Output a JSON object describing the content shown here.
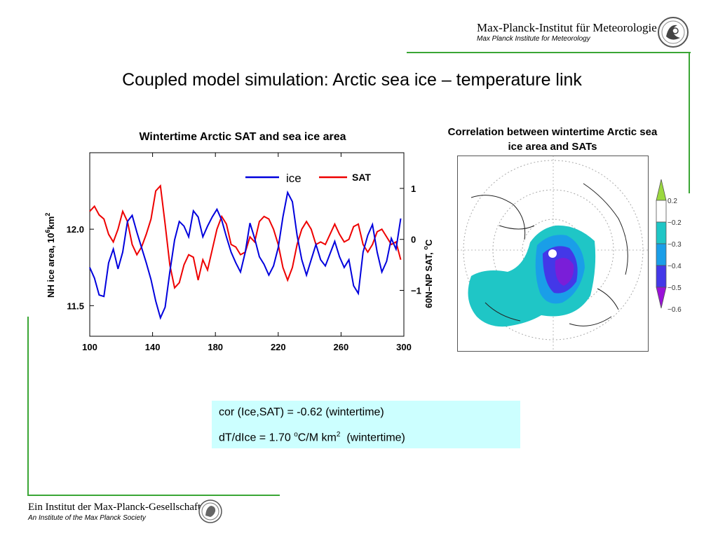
{
  "header": {
    "institute_de": "Max-Planck-Institut für Meteorologie",
    "institute_en": "Max Planck Institute for Meteorology",
    "logo_icon": "mpi-meteorology-logo-icon"
  },
  "slide": {
    "title": "Coupled model simulation: Arctic sea ice – temperature link"
  },
  "footer": {
    "society_de": "Ein Institut der Max-Planck-Gesellschaft",
    "society_en": "An Institute of the Max Planck Society",
    "logo_icon": "minerva-seal-icon"
  },
  "colors": {
    "accent_line": "#3aa635",
    "ice": "#0000dd",
    "sat": "#ee0000",
    "info_box": "#ccffff"
  },
  "info": {
    "line1": "cor (Ice,SAT) = -0.62 (wintertime)",
    "line2_pre": "dT/dIce = 1.70 ",
    "line2_sup1": "o",
    "line2_mid": "C/M km",
    "line2_sup2": "2",
    "line2_post": "  (wintertime)"
  },
  "chart_data": [
    {
      "type": "line",
      "title": "Wintertime Arctic SAT and sea ice area",
      "xlim": [
        100,
        300
      ],
      "x_ticks": [
        "100",
        "140",
        "180",
        "220",
        "260",
        "300"
      ],
      "y_left": {
        "label": "NH ice area, 10",
        "label_sup": "6",
        "label_unit": "km",
        "label_unit_sup": "2",
        "range": [
          11.3,
          12.5
        ],
        "ticks": [
          "12.0",
          "11.5"
        ]
      },
      "y_right": {
        "label": "60N–NP SAT, ",
        "label_sup": "o",
        "label_unit": "C",
        "range": [
          -1.9,
          1.7
        ],
        "ticks": [
          "1",
          "0",
          "−1"
        ]
      },
      "legend": {
        "position": "top-center"
      },
      "series": [
        {
          "name": "ice",
          "axis": "left",
          "x": [
            100,
            103,
            106,
            109,
            112,
            115,
            118,
            121,
            124,
            127,
            130,
            133,
            136,
            139,
            142,
            145,
            148,
            151,
            154,
            157,
            160,
            163,
            166,
            169,
            172,
            175,
            178,
            181,
            184,
            187,
            190,
            193,
            196,
            199,
            202,
            205,
            208,
            211,
            214,
            217,
            220,
            223,
            226,
            229,
            232,
            235,
            238,
            241,
            244,
            247,
            250,
            253,
            256,
            259,
            262,
            265,
            268,
            271,
            274,
            277,
            280,
            283,
            286,
            289,
            292,
            295,
            298
          ],
          "values": [
            11.75,
            11.68,
            11.57,
            11.56,
            11.78,
            11.87,
            11.74,
            11.85,
            12.05,
            12.09,
            11.98,
            11.88,
            11.78,
            11.67,
            11.53,
            11.42,
            11.49,
            11.72,
            11.93,
            12.05,
            12.02,
            11.95,
            12.12,
            12.08,
            11.95,
            12.02,
            12.08,
            12.13,
            12.06,
            11.95,
            11.85,
            11.78,
            11.72,
            11.85,
            12.04,
            11.94,
            11.82,
            11.77,
            11.7,
            11.76,
            11.88,
            12.08,
            12.24,
            12.18,
            11.96,
            11.8,
            11.7,
            11.8,
            11.9,
            11.8,
            11.76,
            11.84,
            11.92,
            11.82,
            11.75,
            11.8,
            11.63,
            11.58,
            11.85,
            11.96,
            12.03,
            11.85,
            11.72,
            11.79,
            11.94,
            11.87,
            12.07
          ],
          "color": "#0000dd"
        },
        {
          "name": "SAT",
          "axis": "right",
          "x": [
            100,
            103,
            106,
            109,
            112,
            115,
            118,
            121,
            124,
            127,
            130,
            133,
            136,
            139,
            142,
            145,
            148,
            151,
            154,
            157,
            160,
            163,
            166,
            169,
            172,
            175,
            178,
            181,
            184,
            187,
            190,
            193,
            196,
            199,
            202,
            205,
            208,
            211,
            214,
            217,
            220,
            223,
            226,
            229,
            232,
            235,
            238,
            241,
            244,
            247,
            250,
            253,
            256,
            259,
            262,
            265,
            268,
            271,
            274,
            277,
            280,
            283,
            286,
            289,
            292,
            295,
            298
          ],
          "values": [
            0.55,
            0.65,
            0.48,
            0.4,
            0.1,
            -0.05,
            0.2,
            0.55,
            0.35,
            -0.1,
            -0.3,
            -0.15,
            0.1,
            0.4,
            0.95,
            1.05,
            0.3,
            -0.5,
            -0.95,
            -0.85,
            -0.5,
            -0.3,
            -0.35,
            -0.8,
            -0.4,
            -0.6,
            -0.2,
            0.2,
            0.45,
            0.3,
            -0.1,
            -0.15,
            -0.3,
            -0.25,
            0.05,
            -0.05,
            0.35,
            0.45,
            0.4,
            0.2,
            -0.1,
            -0.55,
            -0.8,
            -0.55,
            -0.1,
            0.2,
            0.35,
            0.2,
            -0.1,
            -0.05,
            -0.1,
            0.1,
            0.3,
            0.1,
            -0.05,
            0.0,
            0.25,
            0.3,
            -0.1,
            -0.25,
            -0.1,
            0.15,
            0.2,
            0.05,
            -0.1,
            -0.05,
            -0.4
          ],
          "color": "#ee0000"
        }
      ]
    },
    {
      "type": "heatmap",
      "title": "Correlation between wintertime Arctic sea ice area and SATs",
      "colorbar": {
        "levels": [
          0.2,
          -0.2,
          -0.3,
          -0.4,
          -0.5,
          -0.6
        ],
        "labels": [
          "0.2",
          "−0.2",
          "−0.3",
          "−0.4",
          "−0.5",
          "−0.6"
        ],
        "colors": [
          "#9bd83f",
          "#ffffff",
          "#1fc6c6",
          "#1a9ee8",
          "#4338e8",
          "#9a12d8"
        ]
      }
    }
  ]
}
